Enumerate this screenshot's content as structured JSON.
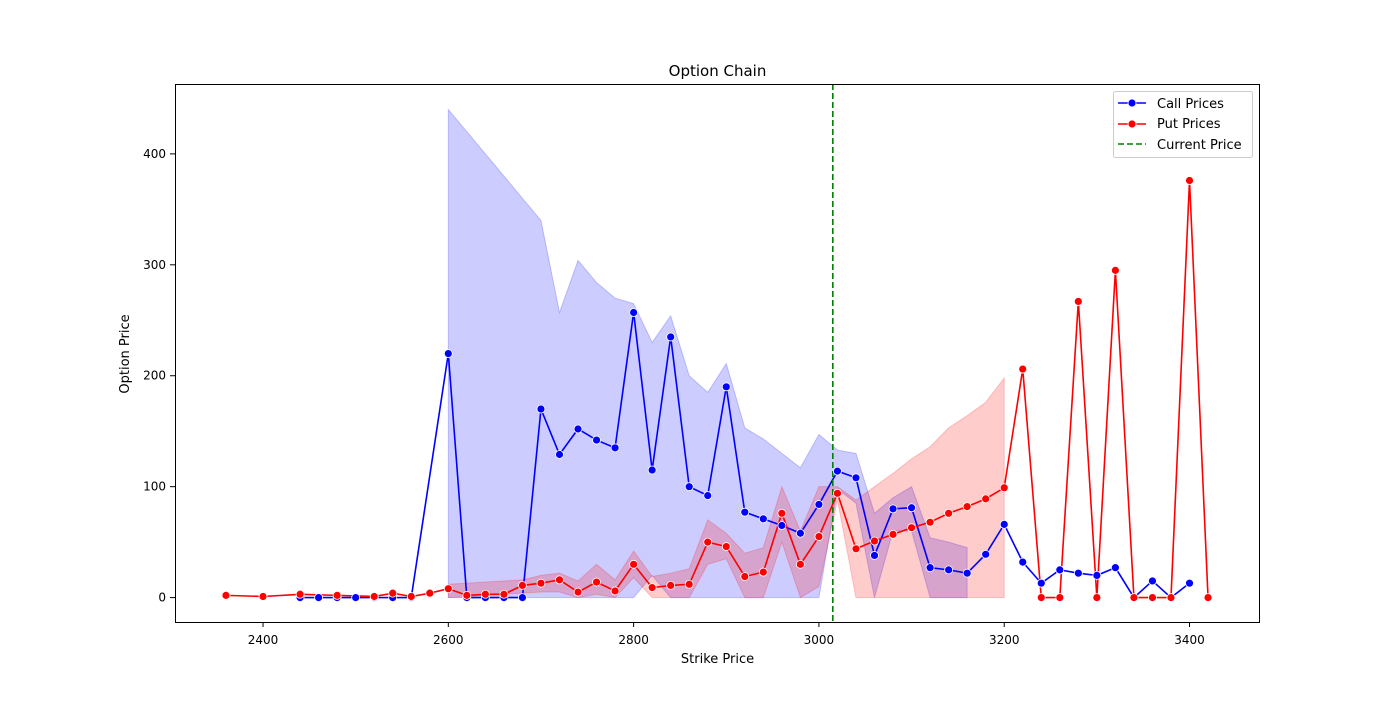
{
  "chart_data": {
    "type": "line",
    "title": "Option Chain",
    "xlabel": "Strike Price",
    "ylabel": "Option Price",
    "xlim": [
      2305,
      3475
    ],
    "ylim": [
      -22,
      463
    ],
    "xticks": [
      2400,
      2600,
      2800,
      3000,
      3200,
      3400
    ],
    "yticks": [
      0,
      100,
      200,
      300,
      400
    ],
    "grid": false,
    "legend_position": "top-right",
    "current_price": 3015,
    "series": [
      {
        "name": "Call Prices",
        "color": "#0000ff",
        "band_color": "#0000ff",
        "x": [
          2440,
          2460,
          2480,
          2500,
          2520,
          2540,
          2560,
          2600,
          2620,
          2640,
          2660,
          2680,
          2700,
          2720,
          2740,
          2760,
          2780,
          2800,
          2820,
          2840,
          2860,
          2880,
          2900,
          2920,
          2940,
          2960,
          2980,
          3000,
          3020,
          3040,
          3060,
          3080,
          3100,
          3120,
          3140,
          3160,
          3180,
          3200,
          3220,
          3240,
          3260,
          3280,
          3300,
          3320,
          3340,
          3360,
          3380,
          3400
        ],
        "y": [
          0,
          0,
          0,
          0,
          0,
          0,
          0,
          220,
          0,
          0,
          0,
          0,
          170,
          129,
          152,
          142,
          135,
          257,
          115,
          235,
          100,
          92,
          190,
          77,
          71,
          65,
          58,
          84,
          114,
          108,
          38,
          80,
          81,
          27,
          25,
          22,
          39,
          66,
          32,
          13,
          25,
          22,
          20,
          27,
          0,
          15,
          0,
          13
        ],
        "band": [
          {
            "x": 2600,
            "lo": 0,
            "hi": 440
          },
          {
            "x": 2700,
            "lo": 0,
            "hi": 340
          },
          {
            "x": 2720,
            "lo": 0,
            "hi": 257
          },
          {
            "x": 2740,
            "lo": 0,
            "hi": 304
          },
          {
            "x": 2760,
            "lo": 0,
            "hi": 284
          },
          {
            "x": 2780,
            "lo": 0,
            "hi": 270
          },
          {
            "x": 2800,
            "lo": 0,
            "hi": 265
          },
          {
            "x": 2820,
            "lo": 20,
            "hi": 230
          },
          {
            "x": 2840,
            "lo": 0,
            "hi": 254
          },
          {
            "x": 2860,
            "lo": 0,
            "hi": 200
          },
          {
            "x": 2880,
            "lo": 0,
            "hi": 185
          },
          {
            "x": 2900,
            "lo": 0,
            "hi": 211
          },
          {
            "x": 2920,
            "lo": 0,
            "hi": 153
          },
          {
            "x": 2940,
            "lo": 0,
            "hi": 143
          },
          {
            "x": 2960,
            "lo": 0,
            "hi": 130
          },
          {
            "x": 2980,
            "lo": 0,
            "hi": 117
          },
          {
            "x": 3000,
            "lo": 0,
            "hi": 147
          },
          {
            "x": 3020,
            "lo": 98,
            "hi": 133
          },
          {
            "x": 3040,
            "lo": 85,
            "hi": 130
          },
          {
            "x": 3060,
            "lo": 0,
            "hi": 76
          },
          {
            "x": 3080,
            "lo": 60,
            "hi": 90
          },
          {
            "x": 3100,
            "lo": 60,
            "hi": 100
          },
          {
            "x": 3120,
            "lo": 0,
            "hi": 54
          },
          {
            "x": 3140,
            "lo": 0,
            "hi": 50
          },
          {
            "x": 3160,
            "lo": 0,
            "hi": 45
          }
        ]
      },
      {
        "name": "Put Prices",
        "color": "#ff0000",
        "band_color": "#ff0000",
        "x": [
          2360,
          2400,
          2440,
          2480,
          2520,
          2540,
          2560,
          2580,
          2600,
          2620,
          2640,
          2660,
          2680,
          2700,
          2720,
          2740,
          2760,
          2780,
          2800,
          2820,
          2840,
          2860,
          2880,
          2900,
          2920,
          2940,
          2960,
          2980,
          3000,
          3020,
          3040,
          3060,
          3080,
          3100,
          3120,
          3140,
          3160,
          3180,
          3200,
          3220,
          3240,
          3260,
          3280,
          3300,
          3320,
          3340,
          3360,
          3380,
          3400,
          3420
        ],
        "y": [
          2,
          1,
          3,
          2,
          1,
          4,
          1,
          4,
          8,
          2,
          3,
          3,
          11,
          13,
          16,
          5,
          14,
          6,
          30,
          9,
          11,
          12,
          50,
          46,
          19,
          23,
          76,
          30,
          55,
          94,
          44,
          51,
          57,
          63,
          68,
          76,
          82,
          89,
          99,
          206,
          0,
          0,
          267,
          0,
          295,
          0,
          0,
          0,
          376,
          0
        ],
        "band": [
          {
            "x": 2600,
            "lo": 0,
            "hi": 12
          },
          {
            "x": 2680,
            "lo": 4,
            "hi": 16
          },
          {
            "x": 2700,
            "lo": 5,
            "hi": 20
          },
          {
            "x": 2720,
            "lo": 5,
            "hi": 22
          },
          {
            "x": 2740,
            "lo": 0,
            "hi": 15
          },
          {
            "x": 2760,
            "lo": 3,
            "hi": 30
          },
          {
            "x": 2780,
            "lo": 0,
            "hi": 16
          },
          {
            "x": 2800,
            "lo": 18,
            "hi": 42
          },
          {
            "x": 2820,
            "lo": 0,
            "hi": 19
          },
          {
            "x": 2840,
            "lo": 0,
            "hi": 22
          },
          {
            "x": 2860,
            "lo": 0,
            "hi": 26
          },
          {
            "x": 2880,
            "lo": 30,
            "hi": 70
          },
          {
            "x": 2900,
            "lo": 35,
            "hi": 58
          },
          {
            "x": 2920,
            "lo": 0,
            "hi": 40
          },
          {
            "x": 2940,
            "lo": 0,
            "hi": 45
          },
          {
            "x": 2960,
            "lo": 50,
            "hi": 100
          },
          {
            "x": 2980,
            "lo": 0,
            "hi": 60
          },
          {
            "x": 3000,
            "lo": 10,
            "hi": 100
          },
          {
            "x": 3020,
            "lo": 88,
            "hi": 100
          },
          {
            "x": 3040,
            "lo": 0,
            "hi": 88
          },
          {
            "x": 3060,
            "lo": 0,
            "hi": 100
          },
          {
            "x": 3080,
            "lo": 0,
            "hi": 112
          },
          {
            "x": 3100,
            "lo": 0,
            "hi": 125
          },
          {
            "x": 3120,
            "lo": 0,
            "hi": 136
          },
          {
            "x": 3140,
            "lo": 0,
            "hi": 153
          },
          {
            "x": 3160,
            "lo": 0,
            "hi": 164
          },
          {
            "x": 3180,
            "lo": 0,
            "hi": 176
          },
          {
            "x": 3200,
            "lo": 0,
            "hi": 198
          }
        ]
      }
    ],
    "reference_line": {
      "name": "Current Price",
      "color": "#008000",
      "style": "dashed"
    }
  }
}
